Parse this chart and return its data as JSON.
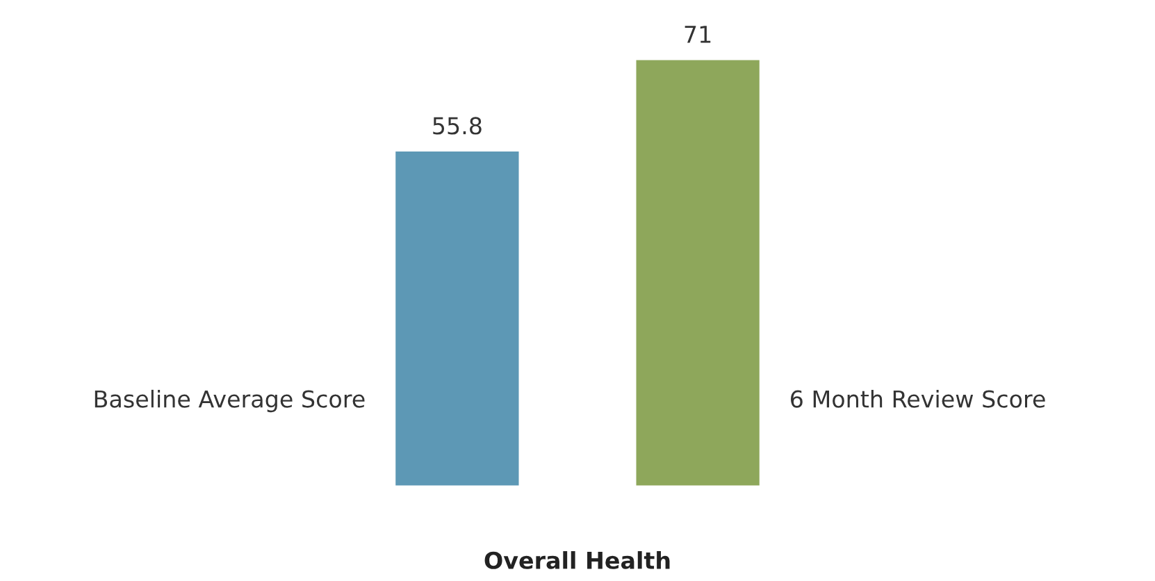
{
  "chart_data": {
    "type": "bar",
    "categories": [
      null,
      null
    ],
    "xlabel": "Overall Health",
    "values": [
      55.8,
      71
    ],
    "colors": [
      "#5d98b5",
      "#8ea75b"
    ],
    "annotations": [
      "Baseline Average Score",
      "6 Month Review Score"
    ],
    "data_labels": true,
    "grid": false
  }
}
